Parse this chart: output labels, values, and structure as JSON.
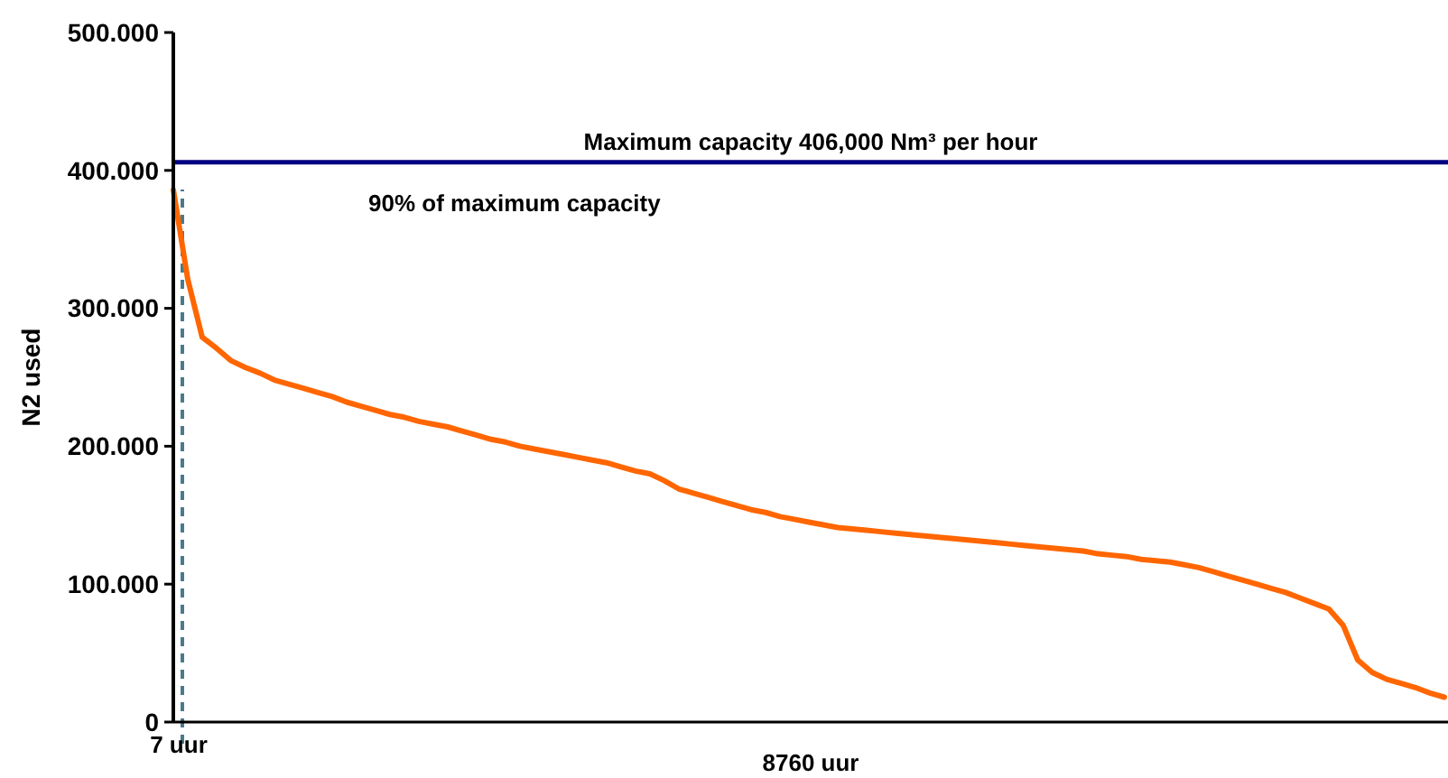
{
  "chart_data": {
    "type": "line",
    "ylabel": "N2 used",
    "xlabel": "8760 uur",
    "categories": [
      null,
      null,
      null,
      null,
      null,
      null,
      null,
      null,
      null,
      null,
      null,
      null,
      null,
      null,
      null,
      null,
      null,
      null,
      null,
      null,
      null,
      null,
      null,
      null,
      null,
      null,
      null,
      null,
      null,
      null,
      null,
      null,
      null,
      null,
      null,
      null,
      null,
      null,
      null,
      null,
      null,
      null,
      null,
      null,
      null,
      null,
      null,
      null,
      null,
      null,
      null,
      null,
      null,
      null,
      null,
      null,
      null,
      null,
      null,
      null,
      null,
      null,
      null,
      null,
      null,
      null,
      null,
      null,
      null,
      null,
      null,
      null,
      null,
      null,
      null,
      null,
      null,
      null,
      null,
      null,
      null,
      null,
      null,
      null,
      null,
      null,
      null,
      null,
      null
    ],
    "ylim": [
      0,
      500000
    ],
    "yticks": [
      {
        "value": 0,
        "label": "0"
      },
      {
        "value": 100000,
        "label": "100.000"
      },
      {
        "value": 200000,
        "label": "200.000"
      },
      {
        "value": 300000,
        "label": "300.000"
      },
      {
        "value": 400000,
        "label": "400.000"
      },
      {
        "value": 500000,
        "label": "500.000"
      }
    ],
    "grid": false,
    "line_style": "solid",
    "annotations": [
      "7 uur",
      "90% of maximum capacity"
    ],
    "ref_lines": [
      {
        "axis": "y",
        "value": 406000,
        "label": "Maximum capacity 406,000 Nm³ per hour",
        "color": "#000080",
        "line_style": "solid"
      }
    ],
    "series": [
      {
        "color": "#ff6600",
        "values": [
          386000,
          321000,
          279000,
          271000,
          262000,
          257000,
          253000,
          248000,
          245000,
          242000,
          239000,
          236000,
          232000,
          229000,
          226000,
          223000,
          221000,
          218000,
          216000,
          214000,
          211000,
          208000,
          205000,
          203000,
          200000,
          198000,
          196000,
          194000,
          192000,
          190000,
          188000,
          185000,
          182000,
          180000,
          175000,
          169000,
          166000,
          163000,
          160000,
          157000,
          154000,
          152000,
          149000,
          147000,
          145000,
          143000,
          141000,
          140000,
          139000,
          138000,
          137000,
          136000,
          135000,
          134000,
          133000,
          132000,
          131000,
          130000,
          129000,
          128000,
          127000,
          126000,
          125000,
          124000,
          122000,
          121000,
          120000,
          118000,
          117000,
          116000,
          114000,
          112000,
          109000,
          106000,
          103000,
          100000,
          97000,
          94000,
          90000,
          86000,
          82000,
          70000,
          45000,
          36000,
          31000,
          28000,
          25000,
          21000,
          18000
        ]
      }
    ]
  }
}
